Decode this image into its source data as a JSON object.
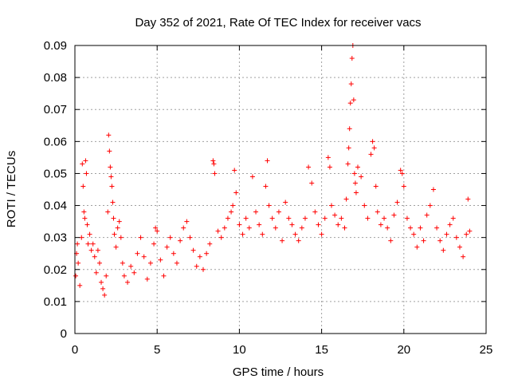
{
  "chart_data": {
    "type": "scatter",
    "title": "Day 352 of 2021, Rate Of TEC Index for receiver vacs",
    "xlabel": "GPS time / hours",
    "ylabel": "ROTI / TECUs",
    "xlim": [
      0,
      25
    ],
    "ylim": [
      0,
      0.09
    ],
    "x_ticks": [
      0,
      5,
      10,
      15,
      20,
      25
    ],
    "x_tick_labels": [
      "0",
      "5",
      "10",
      "15",
      "20",
      "25"
    ],
    "y_ticks": [
      0,
      0.01,
      0.02,
      0.03,
      0.04,
      0.05,
      0.06,
      0.07,
      0.08,
      0.09
    ],
    "y_tick_labels": [
      "0",
      "0.01",
      "0.02",
      "0.03",
      "0.04",
      "0.05",
      "0.06",
      "0.07",
      "0.08",
      "0.09"
    ],
    "grid": true,
    "marker": "+",
    "marker_color": "#ff0000",
    "series": [
      {
        "points": [
          [
            0.05,
            0.018
          ],
          [
            0.1,
            0.025
          ],
          [
            0.15,
            0.028
          ],
          [
            0.2,
            0.022
          ],
          [
            0.3,
            0.015
          ],
          [
            0.4,
            0.03
          ],
          [
            0.45,
            0.053
          ],
          [
            0.5,
            0.046
          ],
          [
            0.55,
            0.038
          ],
          [
            0.6,
            0.036
          ],
          [
            0.65,
            0.054
          ],
          [
            0.7,
            0.05
          ],
          [
            0.75,
            0.034
          ],
          [
            0.8,
            0.028
          ],
          [
            0.9,
            0.031
          ],
          [
            1.0,
            0.026
          ],
          [
            1.1,
            0.028
          ],
          [
            1.2,
            0.024
          ],
          [
            1.3,
            0.019
          ],
          [
            1.4,
            0.026
          ],
          [
            1.5,
            0.022
          ],
          [
            1.6,
            0.016
          ],
          [
            1.7,
            0.014
          ],
          [
            1.8,
            0.012
          ],
          [
            1.9,
            0.018
          ],
          [
            2.0,
            0.038
          ],
          [
            2.05,
            0.062
          ],
          [
            2.1,
            0.057
          ],
          [
            2.15,
            0.052
          ],
          [
            2.2,
            0.049
          ],
          [
            2.25,
            0.046
          ],
          [
            2.3,
            0.041
          ],
          [
            2.35,
            0.036
          ],
          [
            2.4,
            0.031
          ],
          [
            2.5,
            0.027
          ],
          [
            2.6,
            0.033
          ],
          [
            2.7,
            0.035
          ],
          [
            2.8,
            0.03
          ],
          [
            2.9,
            0.022
          ],
          [
            3.0,
            0.018
          ],
          [
            3.2,
            0.016
          ],
          [
            3.4,
            0.021
          ],
          [
            3.6,
            0.019
          ],
          [
            3.8,
            0.025
          ],
          [
            4.0,
            0.03
          ],
          [
            4.2,
            0.024
          ],
          [
            4.4,
            0.017
          ],
          [
            4.6,
            0.022
          ],
          [
            4.8,
            0.028
          ],
          [
            4.9,
            0.033
          ],
          [
            5.0,
            0.032
          ],
          [
            5.2,
            0.023
          ],
          [
            5.4,
            0.018
          ],
          [
            5.6,
            0.027
          ],
          [
            5.8,
            0.03
          ],
          [
            6.0,
            0.025
          ],
          [
            6.2,
            0.022
          ],
          [
            6.4,
            0.029
          ],
          [
            6.6,
            0.033
          ],
          [
            6.8,
            0.035
          ],
          [
            7.0,
            0.03
          ],
          [
            7.2,
            0.026
          ],
          [
            7.4,
            0.021
          ],
          [
            7.6,
            0.024
          ],
          [
            7.8,
            0.02
          ],
          [
            8.0,
            0.025
          ],
          [
            8.2,
            0.028
          ],
          [
            8.4,
            0.054
          ],
          [
            8.45,
            0.053
          ],
          [
            8.5,
            0.05
          ],
          [
            8.7,
            0.032
          ],
          [
            8.9,
            0.03
          ],
          [
            9.1,
            0.033
          ],
          [
            9.3,
            0.036
          ],
          [
            9.5,
            0.038
          ],
          [
            9.6,
            0.04
          ],
          [
            9.7,
            0.051
          ],
          [
            9.8,
            0.044
          ],
          [
            10.0,
            0.034
          ],
          [
            10.2,
            0.031
          ],
          [
            10.4,
            0.036
          ],
          [
            10.6,
            0.033
          ],
          [
            10.8,
            0.049
          ],
          [
            11.0,
            0.038
          ],
          [
            11.2,
            0.034
          ],
          [
            11.4,
            0.031
          ],
          [
            11.6,
            0.046
          ],
          [
            11.7,
            0.054
          ],
          [
            11.8,
            0.04
          ],
          [
            12.0,
            0.036
          ],
          [
            12.2,
            0.033
          ],
          [
            12.4,
            0.038
          ],
          [
            12.6,
            0.029
          ],
          [
            12.8,
            0.041
          ],
          [
            13.0,
            0.036
          ],
          [
            13.2,
            0.034
          ],
          [
            13.4,
            0.031
          ],
          [
            13.6,
            0.029
          ],
          [
            13.8,
            0.033
          ],
          [
            14.0,
            0.036
          ],
          [
            14.2,
            0.052
          ],
          [
            14.4,
            0.047
          ],
          [
            14.6,
            0.038
          ],
          [
            14.8,
            0.034
          ],
          [
            15.0,
            0.031
          ],
          [
            15.2,
            0.036
          ],
          [
            15.4,
            0.055
          ],
          [
            15.5,
            0.052
          ],
          [
            15.6,
            0.04
          ],
          [
            15.8,
            0.037
          ],
          [
            16.0,
            0.034
          ],
          [
            16.2,
            0.036
          ],
          [
            16.4,
            0.033
          ],
          [
            16.5,
            0.042
          ],
          [
            16.6,
            0.053
          ],
          [
            16.65,
            0.058
          ],
          [
            16.7,
            0.064
          ],
          [
            16.75,
            0.072
          ],
          [
            16.8,
            0.078
          ],
          [
            16.85,
            0.086
          ],
          [
            16.9,
            0.09
          ],
          [
            16.95,
            0.073
          ],
          [
            17.0,
            0.05
          ],
          [
            17.05,
            0.047
          ],
          [
            17.1,
            0.044
          ],
          [
            17.2,
            0.052
          ],
          [
            17.4,
            0.049
          ],
          [
            17.6,
            0.04
          ],
          [
            17.8,
            0.036
          ],
          [
            18.0,
            0.056
          ],
          [
            18.1,
            0.06
          ],
          [
            18.2,
            0.058
          ],
          [
            18.3,
            0.046
          ],
          [
            18.4,
            0.038
          ],
          [
            18.6,
            0.034
          ],
          [
            18.8,
            0.036
          ],
          [
            19.0,
            0.033
          ],
          [
            19.2,
            0.029
          ],
          [
            19.4,
            0.037
          ],
          [
            19.6,
            0.041
          ],
          [
            19.8,
            0.051
          ],
          [
            19.9,
            0.05
          ],
          [
            20.0,
            0.046
          ],
          [
            20.2,
            0.036
          ],
          [
            20.4,
            0.033
          ],
          [
            20.6,
            0.031
          ],
          [
            20.8,
            0.027
          ],
          [
            21.0,
            0.033
          ],
          [
            21.2,
            0.029
          ],
          [
            21.4,
            0.037
          ],
          [
            21.6,
            0.04
          ],
          [
            21.8,
            0.045
          ],
          [
            22.0,
            0.033
          ],
          [
            22.2,
            0.029
          ],
          [
            22.4,
            0.026
          ],
          [
            22.6,
            0.031
          ],
          [
            22.8,
            0.034
          ],
          [
            23.0,
            0.036
          ],
          [
            23.2,
            0.03
          ],
          [
            23.4,
            0.027
          ],
          [
            23.6,
            0.024
          ],
          [
            23.8,
            0.031
          ],
          [
            23.9,
            0.042
          ],
          [
            24.0,
            0.032
          ]
        ]
      }
    ]
  }
}
